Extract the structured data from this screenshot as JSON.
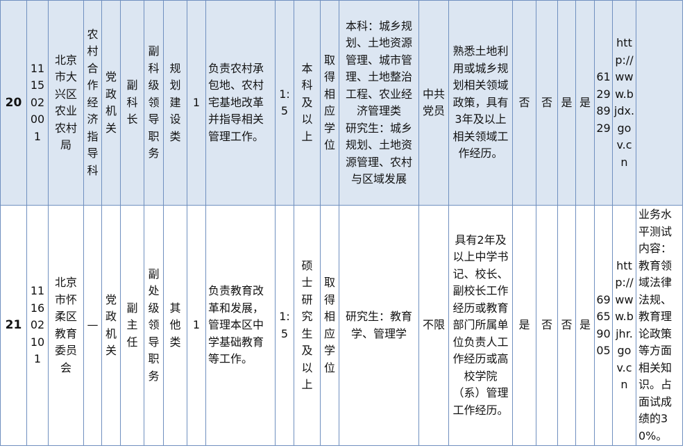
{
  "rows": [
    {
      "index": "20",
      "code": "111502001",
      "unit": "北京市大兴区农业农村局",
      "department": "农村合作经济指导科",
      "nature": "党政机关",
      "position": "副科长",
      "level": "副科级领导职务",
      "category": "规划建设类",
      "count": "1",
      "description": "负责农村承包地、农村宅基地改革并指导相关管理工作。",
      "ratio": "1:5",
      "education": "本科及以上",
      "degree": "取得相应学位",
      "major": "本科：城乡规划、土地资源管理、城市管理、土地整治工程、农业经济管理类\n研究生：城乡规划、土地资源管理、农村与区域发展",
      "political": "中共党员",
      "other": "熟悉土地利用或城乡规划相关领域政策，具有3年及以上相关领域工作经历。",
      "c1": "否",
      "c2": "否",
      "c3": "是",
      "c4": "是",
      "phone": "61298929",
      "website": "http://www.bjdx.gov.cn",
      "note": ""
    },
    {
      "index": "21",
      "code": "111602101",
      "unit": "北京市怀柔区教育委员会",
      "department": "—",
      "nature": "党政机关",
      "position": "副主任",
      "level": "副处级领导职务",
      "category": "其他类",
      "count": "1",
      "description": "负责教育改革和发展，管理本区中学基础教育等工作。",
      "ratio": "1:5",
      "education": "硕士研究生及以上",
      "degree": "取得相应学位",
      "major": "研究生：教育学、管理学",
      "political": "不限",
      "other": "具有2年及以上中学书记、校长、副校长工作经历或教育部门所属单位负责人工作经历或高校学院（系）管理工作经历。",
      "c1": "是",
      "c2": "否",
      "c3": "否",
      "c4": "是",
      "phone": "69659005",
      "website": "http://www.bjhr.gov.cn",
      "note": "业务水平测试内容：教育领域法律法规、教育理论政策等方面相关知识。占面试成绩的30%。"
    }
  ]
}
